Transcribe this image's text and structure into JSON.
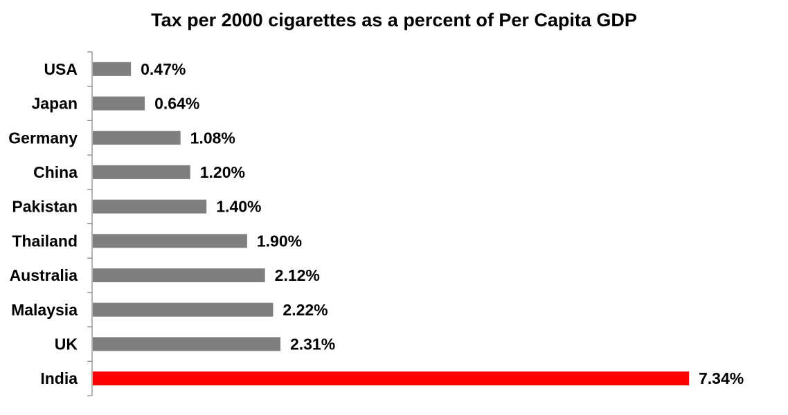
{
  "chart_data": {
    "type": "bar",
    "orientation": "horizontal",
    "title": "Tax per 2000 cigarettes as a percent of Per Capita GDP",
    "xlabel": "",
    "ylabel": "",
    "categories": [
      "USA",
      "Japan",
      "Germany",
      "China",
      "Pakistan",
      "Thailand",
      "Australia",
      "Malaysia",
      "UK",
      "India"
    ],
    "values": [
      0.47,
      0.64,
      1.08,
      1.2,
      1.4,
      1.9,
      2.12,
      2.22,
      2.31,
      7.34
    ],
    "value_labels": [
      "0.47%",
      "0.64%",
      "1.08%",
      "1.20%",
      "1.40%",
      "1.90%",
      "2.12%",
      "2.22%",
      "2.31%",
      "7.34%"
    ],
    "unit": "%",
    "xlim": [
      0,
      7.34
    ],
    "grid": false,
    "legend": "none",
    "colors": {
      "default": "#7f7f7f",
      "highlight": "#ff0000",
      "highlight_category": "India",
      "axis": "#808080"
    }
  }
}
